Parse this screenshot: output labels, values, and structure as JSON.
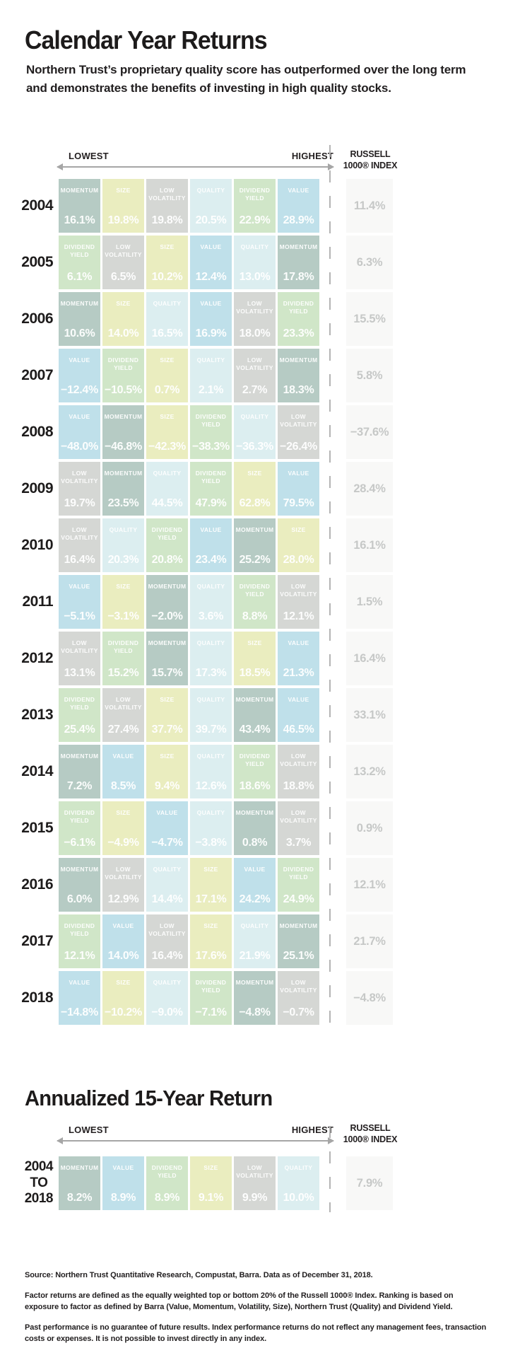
{
  "page": {
    "section1_title": "Calendar Year Returns",
    "section1_subtitle": "Northern Trust’s proprietary quality score has outperformed over the long term and demonstrates the benefits of investing in high quality stocks.",
    "section2_title": "Annualized 15-Year Return"
  },
  "labels": {
    "lowest": "LOWEST",
    "highest": "HIGHEST",
    "russell_line1": "RUSSELL",
    "russell_line2": "1000® INDEX"
  },
  "factor_colors": {
    "MOMENTUM": "#b6cbc4",
    "SIZE": "#eaedbf",
    "LOW VOLATILITY": "#d5d7d4",
    "QUALITY": "#dceef0",
    "DIVIDEND YIELD": "#d0e6c8",
    "VALUE": "#bfe0ea"
  },
  "chart_data": {
    "type": "heatmap",
    "title": "Calendar Year Returns",
    "layout_note": "Each row ranks six factor returns from lowest (left) to highest (right); rightmost column is the Russell 1000 Index return",
    "rows": [
      {
        "year": "2004",
        "cells": [
          [
            "MOMENTUM",
            "16.1%"
          ],
          [
            "SIZE",
            "19.8%"
          ],
          [
            "LOW VOLATILITY",
            "19.8%"
          ],
          [
            "QUALITY",
            "20.5%"
          ],
          [
            "DIVIDEND YIELD",
            "22.9%"
          ],
          [
            "VALUE",
            "28.9%"
          ]
        ],
        "russell": "11.4%"
      },
      {
        "year": "2005",
        "cells": [
          [
            "DIVIDEND YIELD",
            "6.1%"
          ],
          [
            "LOW VOLATILITY",
            "6.5%"
          ],
          [
            "SIZE",
            "10.2%"
          ],
          [
            "VALUE",
            "12.4%"
          ],
          [
            "QUALITY",
            "13.0%"
          ],
          [
            "MOMENTUM",
            "17.8%"
          ]
        ],
        "russell": "6.3%"
      },
      {
        "year": "2006",
        "cells": [
          [
            "MOMENTUM",
            "10.6%"
          ],
          [
            "SIZE",
            "14.0%"
          ],
          [
            "QUALITY",
            "16.5%"
          ],
          [
            "VALUE",
            "16.9%"
          ],
          [
            "LOW VOLATILITY",
            "18.0%"
          ],
          [
            "DIVIDEND YIELD",
            "23.3%"
          ]
        ],
        "russell": "15.5%"
      },
      {
        "year": "2007",
        "cells": [
          [
            "VALUE",
            "−12.4%"
          ],
          [
            "DIVIDEND YIELD",
            "−10.5%"
          ],
          [
            "SIZE",
            "0.7%"
          ],
          [
            "QUALITY",
            "2.1%"
          ],
          [
            "LOW VOLATILITY",
            "2.7%"
          ],
          [
            "MOMENTUM",
            "18.3%"
          ]
        ],
        "russell": "5.8%"
      },
      {
        "year": "2008",
        "cells": [
          [
            "VALUE",
            "−48.0%"
          ],
          [
            "MOMENTUM",
            "−46.8%"
          ],
          [
            "SIZE",
            "−42.3%"
          ],
          [
            "DIVIDEND YIELD",
            "−38.3%"
          ],
          [
            "QUALITY",
            "−36.3%"
          ],
          [
            "LOW VOLATILITY",
            "−26.4%"
          ]
        ],
        "russell": "−37.6%"
      },
      {
        "year": "2009",
        "cells": [
          [
            "LOW VOLATILITY",
            "19.7%"
          ],
          [
            "MOMENTUM",
            "23.5%"
          ],
          [
            "QUALITY",
            "44.5%"
          ],
          [
            "DIVIDEND YIELD",
            "47.9%"
          ],
          [
            "SIZE",
            "62.8%"
          ],
          [
            "VALUE",
            "79.5%"
          ]
        ],
        "russell": "28.4%"
      },
      {
        "year": "2010",
        "cells": [
          [
            "LOW VOLATILITY",
            "16.4%"
          ],
          [
            "QUALITY",
            "20.3%"
          ],
          [
            "DIVIDEND YIELD",
            "20.8%"
          ],
          [
            "VALUE",
            "23.4%"
          ],
          [
            "MOMENTUM",
            "25.2%"
          ],
          [
            "SIZE",
            "28.0%"
          ]
        ],
        "russell": "16.1%"
      },
      {
        "year": "2011",
        "cells": [
          [
            "VALUE",
            "−5.1%"
          ],
          [
            "SIZE",
            "−3.1%"
          ],
          [
            "MOMENTUM",
            "−2.0%"
          ],
          [
            "QUALITY",
            "3.6%"
          ],
          [
            "DIVIDEND YIELD",
            "8.8%"
          ],
          [
            "LOW VOLATILITY",
            "12.1%"
          ]
        ],
        "russell": "1.5%"
      },
      {
        "year": "2012",
        "cells": [
          [
            "LOW VOLATILITY",
            "13.1%"
          ],
          [
            "DIVIDEND YIELD",
            "15.2%"
          ],
          [
            "MOMENTUM",
            "15.7%"
          ],
          [
            "QUALITY",
            "17.3%"
          ],
          [
            "SIZE",
            "18.5%"
          ],
          [
            "VALUE",
            "21.3%"
          ]
        ],
        "russell": "16.4%"
      },
      {
        "year": "2013",
        "cells": [
          [
            "DIVIDEND YIELD",
            "25.4%"
          ],
          [
            "LOW VOLATILITY",
            "27.4%"
          ],
          [
            "SIZE",
            "37.7%"
          ],
          [
            "QUALITY",
            "39.7%"
          ],
          [
            "MOMENTUM",
            "43.4%"
          ],
          [
            "VALUE",
            "46.5%"
          ]
        ],
        "russell": "33.1%"
      },
      {
        "year": "2014",
        "cells": [
          [
            "MOMENTUM",
            "7.2%"
          ],
          [
            "VALUE",
            "8.5%"
          ],
          [
            "SIZE",
            "9.4%"
          ],
          [
            "QUALITY",
            "12.6%"
          ],
          [
            "DIVIDEND YIELD",
            "18.6%"
          ],
          [
            "LOW VOLATILITY",
            "18.8%"
          ]
        ],
        "russell": "13.2%"
      },
      {
        "year": "2015",
        "cells": [
          [
            "DIVIDEND YIELD",
            "−6.1%"
          ],
          [
            "SIZE",
            "−4.9%"
          ],
          [
            "VALUE",
            "−4.7%"
          ],
          [
            "QUALITY",
            "−3.8%"
          ],
          [
            "MOMENTUM",
            "0.8%"
          ],
          [
            "LOW VOLATILITY",
            "3.7%"
          ]
        ],
        "russell": "0.9%"
      },
      {
        "year": "2016",
        "cells": [
          [
            "MOMENTUM",
            "6.0%"
          ],
          [
            "LOW VOLATILITY",
            "12.9%"
          ],
          [
            "QUALITY",
            "14.4%"
          ],
          [
            "SIZE",
            "17.1%"
          ],
          [
            "VALUE",
            "24.2%"
          ],
          [
            "DIVIDEND YIELD",
            "24.9%"
          ]
        ],
        "russell": "12.1%"
      },
      {
        "year": "2017",
        "cells": [
          [
            "DIVIDEND YIELD",
            "12.1%"
          ],
          [
            "VALUE",
            "14.0%"
          ],
          [
            "LOW VOLATILITY",
            "16.4%"
          ],
          [
            "SIZE",
            "17.6%"
          ],
          [
            "QUALITY",
            "21.9%"
          ],
          [
            "MOMENTUM",
            "25.1%"
          ]
        ],
        "russell": "21.7%"
      },
      {
        "year": "2018",
        "cells": [
          [
            "VALUE",
            "−14.8%"
          ],
          [
            "SIZE",
            "−10.2%"
          ],
          [
            "QUALITY",
            "−9.0%"
          ],
          [
            "DIVIDEND YIELD",
            "−7.1%"
          ],
          [
            "MOMENTUM",
            "−4.8%"
          ],
          [
            "LOW VOLATILITY",
            "−0.7%"
          ]
        ],
        "russell": "−4.8%"
      }
    ],
    "annualized": {
      "title": "Annualized 15-Year Return",
      "year": "2004\nTO\n2018",
      "cells": [
        [
          "MOMENTUM",
          "8.2%"
        ],
        [
          "VALUE",
          "8.9%"
        ],
        [
          "DIVIDEND YIELD",
          "8.9%"
        ],
        [
          "SIZE",
          "9.1%"
        ],
        [
          "LOW VOLATILITY",
          "9.9%"
        ],
        [
          "QUALITY",
          "10.0%"
        ]
      ],
      "russell": "7.9%"
    }
  },
  "footnotes": [
    "Source: Northern Trust Quantitative Research, Compustat, Barra. Data as of December 31, 2018.",
    "Factor returns are defined as the equally weighted top or bottom 20% of the Russell 1000® Index. Ranking is based on exposure to factor as defined by Barra (Value, Momentum, Volatility, Size), Northern Trust (Quality) and Dividend Yield.",
    "Past performance is no guarantee of future results. Index performance returns do not reflect any management fees, transaction costs or expenses. It is not possible to invest directly in any index."
  ]
}
